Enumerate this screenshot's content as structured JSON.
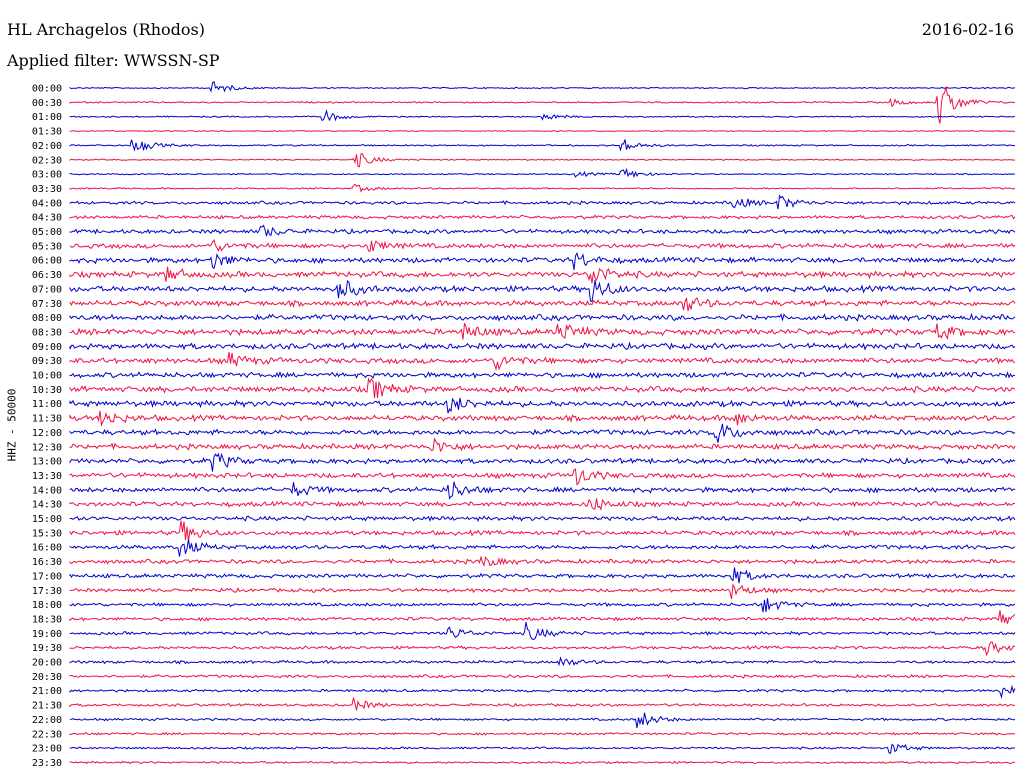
{
  "header": {
    "station": "HL Archagelos (Rhodos)",
    "date": "2016-02-16",
    "filter": "Applied filter: WWSSN-SP"
  },
  "chart_data": {
    "type": "line",
    "title": "HL Archagelos (Rhodos)",
    "ylabel": "HHZ - 50000",
    "trace_colors": [
      "#0000cc",
      "#ee1144"
    ],
    "grid": false,
    "legend": "none",
    "rows": [
      "00:00",
      "00:30",
      "01:00",
      "01:30",
      "02:00",
      "02:30",
      "03:00",
      "03:30",
      "04:00",
      "04:30",
      "05:00",
      "05:30",
      "06:00",
      "06:30",
      "07:00",
      "07:30",
      "08:00",
      "08:30",
      "09:00",
      "09:30",
      "10:00",
      "10:30",
      "11:00",
      "11:30",
      "12:00",
      "12:30",
      "13:00",
      "13:30",
      "14:00",
      "14:30",
      "15:00",
      "15:30",
      "16:00",
      "16:30",
      "17:00",
      "17:30",
      "18:00",
      "18:30",
      "19:00",
      "19:30",
      "20:00",
      "20:30",
      "21:00",
      "21:30",
      "22:00",
      "22:30",
      "23:00",
      "23:30"
    ],
    "noise_level": [
      0.5,
      0.6,
      0.5,
      0.4,
      0.6,
      0.5,
      0.5,
      0.6,
      1.2,
      1.3,
      1.6,
      1.8,
      2.0,
      2.2,
      2.2,
      2.1,
      2.2,
      2.3,
      2.2,
      2.1,
      2.0,
      2.2,
      2.2,
      2.1,
      2.0,
      2.0,
      1.9,
      1.9,
      1.9,
      1.8,
      1.7,
      1.7,
      1.6,
      1.6,
      1.5,
      1.4,
      1.3,
      1.3,
      1.2,
      1.2,
      1.1,
      1.1,
      1.0,
      1.0,
      0.9,
      0.9,
      0.8,
      0.8
    ],
    "events": [
      {
        "row": 0,
        "time_min": 4.5,
        "amp": 7
      },
      {
        "row": 1,
        "time_min": 26,
        "amp": 4
      },
      {
        "row": 1,
        "time_min": 27.5,
        "amp": 28
      },
      {
        "row": 2,
        "time_min": 8,
        "amp": 7
      },
      {
        "row": 2,
        "time_min": 15,
        "amp": 4
      },
      {
        "row": 4,
        "time_min": 2,
        "amp": 9
      },
      {
        "row": 4,
        "time_min": 17.5,
        "amp": 7
      },
      {
        "row": 5,
        "time_min": 9,
        "amp": 10
      },
      {
        "row": 6,
        "time_min": 17.5,
        "amp": 6
      },
      {
        "row": 6,
        "time_min": 16,
        "amp": 3
      },
      {
        "row": 7,
        "time_min": 9,
        "amp": 4
      },
      {
        "row": 8,
        "time_min": 21,
        "amp": 7
      },
      {
        "row": 8,
        "time_min": 22.5,
        "amp": 7
      },
      {
        "row": 10,
        "time_min": 6,
        "amp": 7
      },
      {
        "row": 11,
        "time_min": 4.5,
        "amp": 6
      },
      {
        "row": 11,
        "time_min": 9.5,
        "amp": 6
      },
      {
        "row": 12,
        "time_min": 4.5,
        "amp": 9
      },
      {
        "row": 12,
        "time_min": 16,
        "amp": 8
      },
      {
        "row": 13,
        "time_min": 3,
        "amp": 8
      },
      {
        "row": 13,
        "time_min": 16.5,
        "amp": 12
      },
      {
        "row": 14,
        "time_min": 8.5,
        "amp": 12
      },
      {
        "row": 14,
        "time_min": 16.5,
        "amp": 14
      },
      {
        "row": 15,
        "time_min": 19.5,
        "amp": 8
      },
      {
        "row": 17,
        "time_min": 12.5,
        "amp": 8
      },
      {
        "row": 17,
        "time_min": 15.5,
        "amp": 10
      },
      {
        "row": 17,
        "time_min": 27.5,
        "amp": 8
      },
      {
        "row": 19,
        "time_min": 5,
        "amp": 8
      },
      {
        "row": 19,
        "time_min": 13.5,
        "amp": 8
      },
      {
        "row": 21,
        "time_min": 9.5,
        "amp": 12
      },
      {
        "row": 22,
        "time_min": 12,
        "amp": 10
      },
      {
        "row": 23,
        "time_min": 1,
        "amp": 8
      },
      {
        "row": 23,
        "time_min": 21,
        "amp": 8
      },
      {
        "row": 24,
        "time_min": 20.5,
        "amp": 12
      },
      {
        "row": 25,
        "time_min": 11.5,
        "amp": 8
      },
      {
        "row": 26,
        "time_min": 4.5,
        "amp": 10
      },
      {
        "row": 27,
        "time_min": 16,
        "amp": 10
      },
      {
        "row": 28,
        "time_min": 12,
        "amp": 10
      },
      {
        "row": 28,
        "time_min": 7,
        "amp": 8
      },
      {
        "row": 29,
        "time_min": 16.5,
        "amp": 8
      },
      {
        "row": 31,
        "time_min": 3.5,
        "amp": 12
      },
      {
        "row": 32,
        "time_min": 3.5,
        "amp": 10
      },
      {
        "row": 33,
        "time_min": 13,
        "amp": 6
      },
      {
        "row": 34,
        "time_min": 21,
        "amp": 9
      },
      {
        "row": 35,
        "time_min": 21,
        "amp": 8
      },
      {
        "row": 36,
        "time_min": 22,
        "amp": 8
      },
      {
        "row": 37,
        "time_min": 29.5,
        "amp": 8
      },
      {
        "row": 38,
        "time_min": 14.5,
        "amp": 9
      },
      {
        "row": 38,
        "time_min": 12,
        "amp": 7
      },
      {
        "row": 39,
        "time_min": 29,
        "amp": 8
      },
      {
        "row": 40,
        "time_min": 15.5,
        "amp": 5
      },
      {
        "row": 42,
        "time_min": 29.5,
        "amp": 8
      },
      {
        "row": 43,
        "time_min": 9,
        "amp": 6
      },
      {
        "row": 44,
        "time_min": 18,
        "amp": 10
      },
      {
        "row": 46,
        "time_min": 26,
        "amp": 6
      }
    ]
  }
}
